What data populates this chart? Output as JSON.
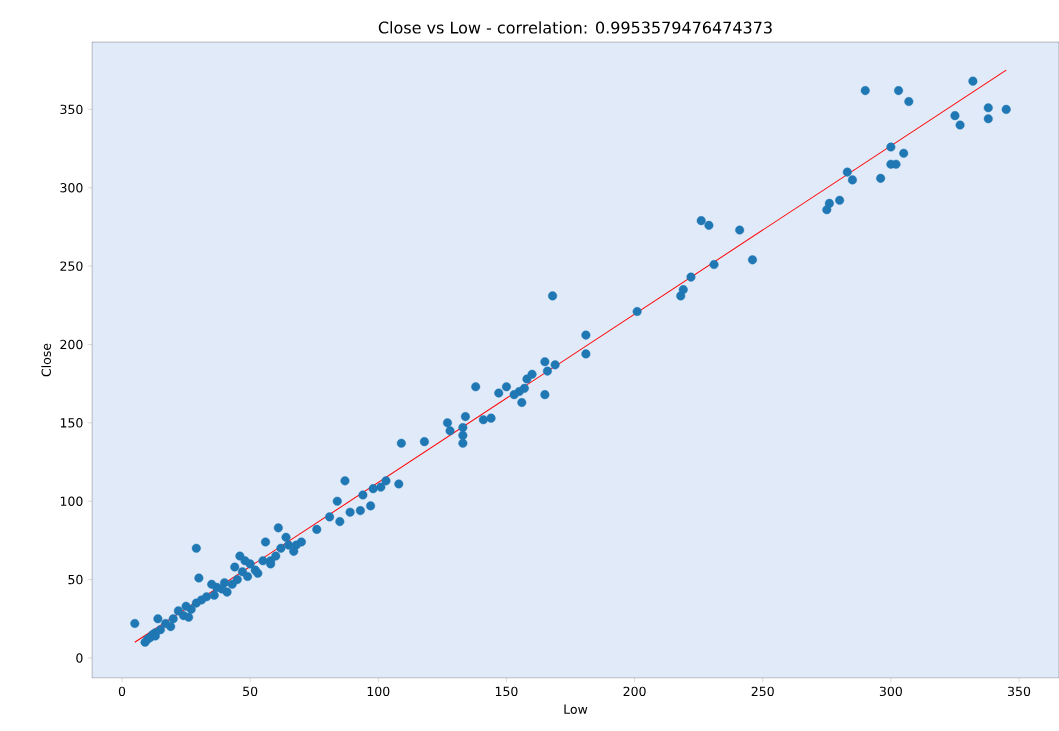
{
  "chart_data": {
    "type": "scatter",
    "title": "Close vs Low - correlation: 0.9953579476474373",
    "xlabel": "Low",
    "ylabel": "Close",
    "xlim": [
      -11.7,
      365.6
    ],
    "ylim": [
      -12.8,
      393
    ],
    "xticks": [
      0,
      50,
      100,
      150,
      200,
      250,
      300,
      350
    ],
    "yticks": [
      0,
      50,
      100,
      150,
      200,
      250,
      300,
      350
    ],
    "marker": "circle",
    "series": [
      {
        "color": "#1f77b4",
        "x": [
          290,
          303,
          307,
          332,
          338,
          345,
          325,
          327,
          338,
          305,
          300,
          300,
          302,
          296,
          283,
          285,
          280,
          276,
          275,
          241,
          246,
          231,
          226,
          229,
          222,
          219,
          218,
          201,
          181,
          181,
          168,
          169,
          165,
          166,
          165,
          160,
          158,
          157,
          155,
          153,
          156,
          150,
          147,
          138,
          144,
          141,
          134,
          133,
          133,
          133,
          127,
          128,
          118,
          109,
          108,
          103,
          101,
          98,
          97,
          93,
          94,
          89,
          87,
          84,
          85,
          81,
          76,
          70,
          68,
          65,
          64,
          62,
          61,
          58,
          56,
          55,
          60,
          58,
          52,
          50,
          49,
          47,
          46,
          45,
          44,
          43,
          40,
          41,
          37,
          35,
          33,
          31,
          29,
          30,
          29,
          27,
          25,
          24,
          22,
          20,
          19,
          17,
          14,
          15,
          13,
          12,
          11,
          10,
          9,
          5,
          13,
          26,
          36,
          39,
          48,
          53,
          67
        ],
        "values": [
          362,
          362,
          355,
          368,
          351,
          350,
          346,
          340,
          344,
          322,
          326,
          315,
          315,
          306,
          310,
          305,
          292,
          290,
          286,
          273,
          254,
          251,
          279,
          276,
          243,
          235,
          231,
          221,
          206,
          194,
          231,
          187,
          189,
          183,
          168,
          181,
          178,
          172,
          170,
          168,
          163,
          173,
          169,
          173,
          153,
          152,
          154,
          147,
          142,
          137,
          150,
          145,
          138,
          137,
          111,
          113,
          109,
          108,
          97,
          94,
          104,
          93,
          113,
          100,
          87,
          90,
          82,
          74,
          72,
          72,
          77,
          70,
          83,
          62,
          74,
          62,
          65,
          60,
          56,
          60,
          52,
          55,
          65,
          50,
          58,
          47,
          48,
          42,
          45,
          47,
          39,
          37,
          35,
          51,
          70,
          31,
          33,
          27,
          30,
          25,
          20,
          22,
          25,
          18,
          16,
          15,
          13,
          12,
          10,
          22,
          14,
          26,
          40,
          44,
          62,
          54,
          68
        ]
      },
      {
        "type": "line",
        "color": "#ff0000",
        "marker": "none",
        "x": [
          5,
          345
        ],
        "values": [
          10,
          375
        ]
      }
    ]
  }
}
